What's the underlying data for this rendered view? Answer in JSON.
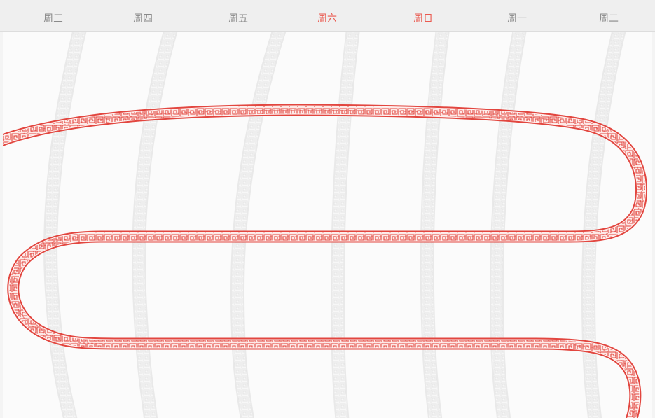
{
  "header": {
    "days": [
      {
        "label": "周三",
        "weekend": false
      },
      {
        "label": "周四",
        "weekend": false
      },
      {
        "label": "周五",
        "weekend": false
      },
      {
        "label": "周六",
        "weekend": true
      },
      {
        "label": "周日",
        "weekend": true
      },
      {
        "label": "周一",
        "weekend": false
      },
      {
        "label": "周二",
        "weekend": false
      }
    ]
  },
  "colors": {
    "weekday_text": "#8a8a8a",
    "weekend_text": "#ea5a50",
    "border_red": "#e2463f",
    "border_gray": "#e3e3e3"
  }
}
